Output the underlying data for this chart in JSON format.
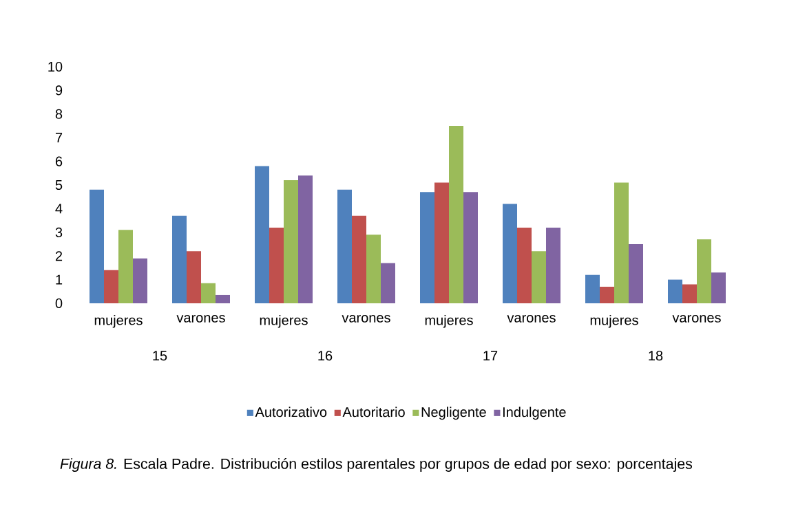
{
  "chart_data": {
    "type": "bar",
    "categories": [
      "mujeres",
      "varones",
      "mujeres",
      "varones",
      "mujeres",
      "varones",
      "mujeres",
      "varones"
    ],
    "series": [
      {
        "name": "Autorizativo",
        "color": "#4f81bd",
        "values": [
          4.8,
          3.7,
          5.8,
          4.8,
          4.7,
          4.2,
          1.2,
          1.0
        ]
      },
      {
        "name": "Autoritario",
        "color": "#c0504d",
        "values": [
          1.4,
          2.2,
          3.2,
          3.7,
          5.1,
          3.2,
          0.7,
          0.8
        ]
      },
      {
        "name": "Negligente",
        "color": "#9bbb59",
        "values": [
          3.1,
          0.85,
          5.2,
          2.9,
          7.5,
          2.2,
          5.1,
          2.7
        ]
      },
      {
        "name": "Indulgente",
        "color": "#8064a2",
        "values": [
          1.9,
          0.35,
          5.4,
          1.7,
          4.7,
          3.2,
          2.5,
          1.3
        ]
      }
    ],
    "ylim": [
      0,
      10
    ],
    "yticks": [
      0,
      1,
      2,
      3,
      4,
      5,
      6,
      7,
      8,
      9,
      10
    ],
    "grid": false,
    "legend": "bottom",
    "annotations": [
      "15",
      "16",
      "17",
      "18",
      "*Figura 8.* Escala Padre. Distribución estilos parentales por grupos de edad por sexo: porcentajes"
    ]
  }
}
